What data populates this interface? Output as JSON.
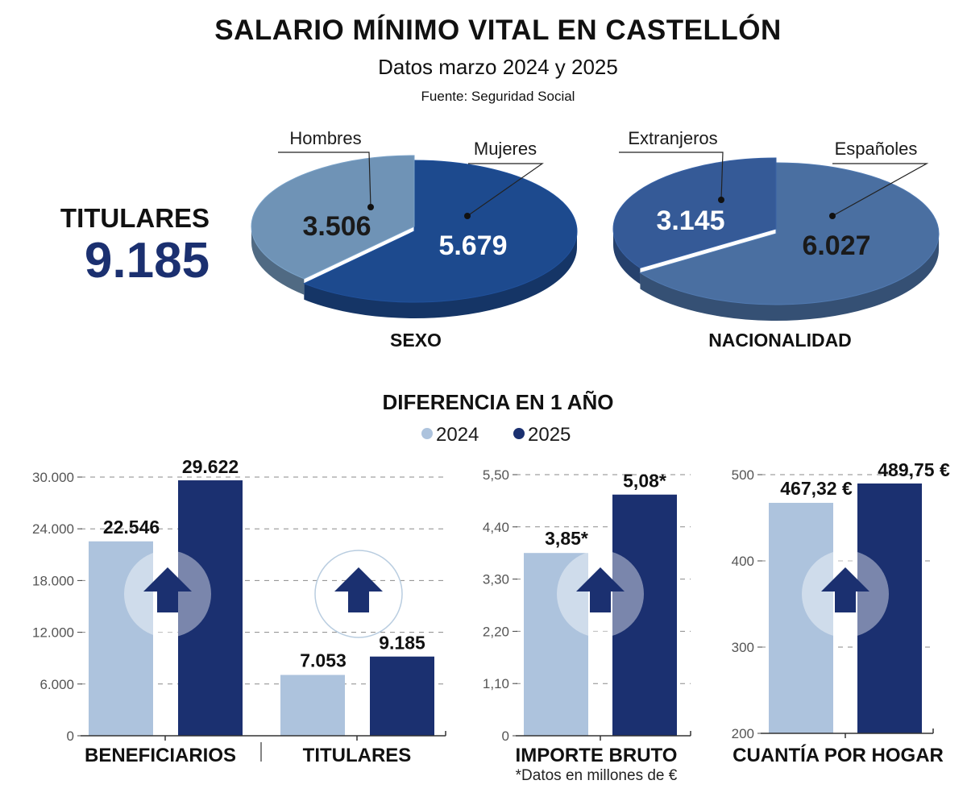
{
  "header": {
    "title": "SALARIO MÍNIMO VITAL EN CASTELLÓN",
    "subtitle": "Datos marzo 2024 y 2025",
    "source": "Fuente: Seguridad Social"
  },
  "titulares": {
    "label": "TITULARES",
    "value": "9.185"
  },
  "pies": [
    {
      "caption": "SEXO",
      "slices": [
        {
          "label": "Hombres",
          "value": 3506,
          "value_label": "3.506",
          "color": "#6f93b6"
        },
        {
          "label": "Mujeres",
          "value": 5679,
          "value_label": "5.679",
          "color": "#1d4a8e"
        }
      ]
    },
    {
      "caption": "NACIONALIDAD",
      "slices": [
        {
          "label": "Extranjeros",
          "value": 3145,
          "value_label": "3.145",
          "color": "#355a97"
        },
        {
          "label": "Españoles",
          "value": 6027,
          "value_label": "6.027",
          "color": "#4a6fa1"
        }
      ]
    }
  ],
  "difference": {
    "title": "DIFERENCIA EN 1 AÑO",
    "legend": [
      {
        "label": "2024",
        "color": "#adc3dd"
      },
      {
        "label": "2025",
        "color": "#1b3070"
      }
    ]
  },
  "chart_data": [
    {
      "type": "bar",
      "title": "",
      "series": [
        {
          "name": "2024",
          "values": [
            22546,
            7053
          ]
        },
        {
          "name": "2025",
          "values": [
            29622,
            9185
          ]
        }
      ],
      "categories": [
        "BENEFICIARIOS",
        "TITULARES"
      ],
      "value_labels": {
        "2024": [
          "22.546",
          "7.053"
        ],
        "2025": [
          "29.622",
          "9.185"
        ]
      },
      "ylim": [
        0,
        30000
      ],
      "yticks": [
        0,
        6000,
        12000,
        18000,
        24000,
        30000
      ],
      "ytick_labels": [
        "0",
        "6.000",
        "12.000",
        "18.000",
        "24.000",
        "30.000"
      ],
      "grid": true,
      "note": ""
    },
    {
      "type": "bar",
      "title": "",
      "series": [
        {
          "name": "2024",
          "values": [
            3.85
          ]
        },
        {
          "name": "2025",
          "values": [
            5.08
          ]
        }
      ],
      "categories": [
        "IMPORTE BRUTO"
      ],
      "value_labels": {
        "2024": [
          "3,85*"
        ],
        "2025": [
          "5,08*"
        ]
      },
      "ylim": [
        0,
        5.5
      ],
      "yticks": [
        0,
        1.1,
        2.2,
        3.3,
        4.4,
        5.5
      ],
      "ytick_labels": [
        "0",
        "1,10",
        "2,20",
        "3,30",
        "4,40",
        "5,50"
      ],
      "grid": true,
      "note": "*Datos en millones de €"
    },
    {
      "type": "bar",
      "title": "",
      "series": [
        {
          "name": "2024",
          "values": [
            467.32
          ]
        },
        {
          "name": "2025",
          "values": [
            489.75
          ]
        }
      ],
      "categories": [
        "CUANTÍA POR HOGAR"
      ],
      "value_labels": {
        "2024": [
          "467,32 €"
        ],
        "2025": [
          "489,75 €"
        ]
      },
      "ylim": [
        200,
        500
      ],
      "yticks": [
        200,
        300,
        400,
        500
      ],
      "ytick_labels": [
        "200",
        "300",
        "400",
        "500"
      ],
      "grid": true,
      "note": ""
    }
  ]
}
